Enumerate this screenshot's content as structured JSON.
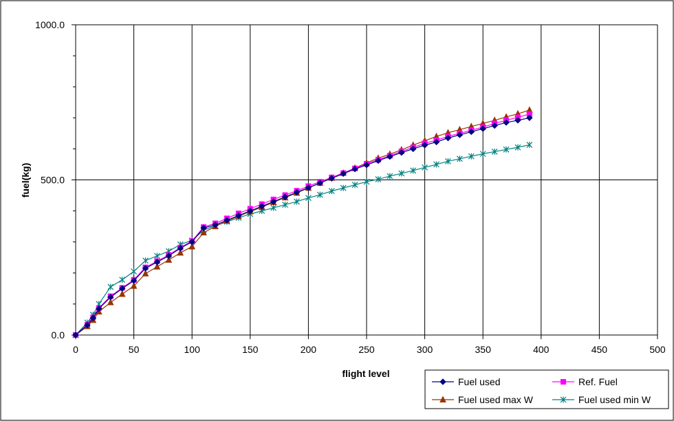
{
  "chart_data": {
    "type": "line",
    "xlabel": "flight level",
    "ylabel": "fuel(kg)",
    "xlim": [
      0,
      500
    ],
    "ylim": [
      0,
      1000
    ],
    "x_ticks": [
      0,
      50,
      100,
      150,
      200,
      250,
      300,
      350,
      400,
      450,
      500
    ],
    "x_tick_labels": [
      "0",
      "50",
      "100",
      "150",
      "200",
      "250",
      "300",
      "350",
      "400",
      "450",
      "500"
    ],
    "y_ticks": [
      0,
      500,
      1000
    ],
    "y_tick_labels": [
      "0.0",
      "500.0",
      "1000.0"
    ],
    "grid": "vertical lines at labeled x ticks; horizontal line at y=500",
    "legend": {
      "position": "bottom-right"
    },
    "x": [
      0,
      10,
      15,
      20,
      30,
      40,
      50,
      60,
      70,
      80,
      90,
      100,
      110,
      120,
      130,
      140,
      150,
      160,
      170,
      180,
      190,
      200,
      210,
      220,
      230,
      240,
      250,
      260,
      270,
      280,
      290,
      300,
      310,
      320,
      330,
      340,
      350,
      360,
      370,
      380,
      390
    ],
    "series": [
      {
        "name": "Fuel used",
        "color": "#000080",
        "marker": "diamond",
        "values": [
          0,
          32,
          55,
          85,
          122,
          150,
          175,
          215,
          235,
          255,
          280,
          300,
          345,
          355,
          370,
          385,
          400,
          415,
          430,
          445,
          460,
          475,
          490,
          505,
          520,
          535,
          548,
          562,
          575,
          588,
          600,
          612,
          622,
          635,
          645,
          655,
          665,
          675,
          685,
          692,
          700
        ]
      },
      {
        "name": "Ref. Fuel",
        "color": "#FF00FF",
        "marker": "square",
        "values": [
          0,
          33,
          57,
          87,
          125,
          152,
          178,
          218,
          238,
          258,
          282,
          303,
          348,
          360,
          376,
          392,
          407,
          422,
          437,
          451,
          465,
          480,
          494,
          508,
          522,
          537,
          552,
          565,
          578,
          592,
          605,
          618,
          628,
          640,
          650,
          660,
          670,
          682,
          692,
          702,
          712
        ]
      },
      {
        "name": "Fuel used max W",
        "color": "#993300",
        "marker": "triangle",
        "values": [
          0,
          28,
          48,
          75,
          105,
          132,
          158,
          198,
          220,
          242,
          265,
          285,
          330,
          350,
          368,
          383,
          398,
          412,
          428,
          443,
          458,
          474,
          490,
          506,
          522,
          538,
          555,
          570,
          583,
          597,
          612,
          626,
          640,
          652,
          662,
          672,
          682,
          692,
          703,
          713,
          725
        ]
      },
      {
        "name": "Fuel used min W",
        "color": "#008080",
        "marker": "asterisk",
        "values": [
          0,
          40,
          65,
          100,
          155,
          178,
          205,
          240,
          255,
          270,
          292,
          305,
          338,
          352,
          365,
          378,
          390,
          400,
          410,
          420,
          430,
          442,
          452,
          464,
          474,
          484,
          494,
          502,
          512,
          521,
          530,
          540,
          550,
          560,
          568,
          576,
          584,
          591,
          598,
          605,
          613
        ]
      }
    ]
  }
}
